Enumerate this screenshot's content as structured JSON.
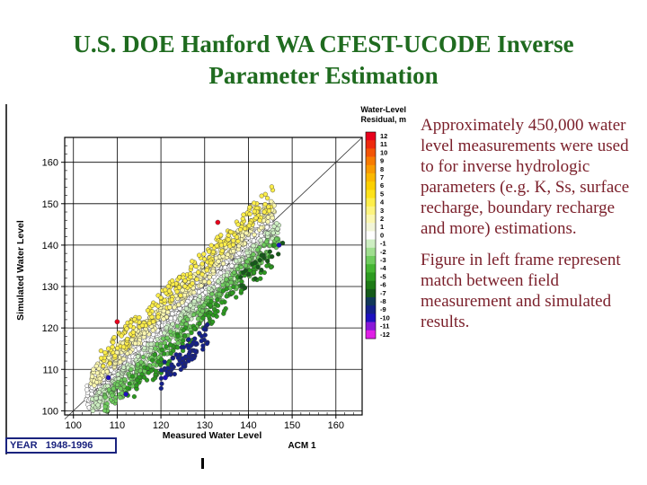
{
  "title_line1": "U.S. DOE Hanford WA CFEST-UCODE Inverse",
  "title_line2": "Parameter Estimation",
  "paragraph1": "Approximately 450,000 water level measurements were used to for inverse hydrologic parameters (e.g. K, Ss, surface recharge, boundary recharge and more) estimations.",
  "paragraph2": "Figure in left frame represent match between field measurement and simulated results.",
  "year_label": "YEAR   1948-1996",
  "model_label": "ACM 1",
  "colors": {
    "title": "#1f6b1f",
    "body_text": "#7a1f2a",
    "year_box": "#1a237e"
  },
  "chart_data": {
    "type": "scatter",
    "xlabel": "Measured Water Level",
    "ylabel": "Simulated Water Level",
    "xlim": [
      98,
      166
    ],
    "ylim": [
      99,
      166
    ],
    "xticks": [
      100,
      110,
      120,
      130,
      140,
      150,
      160
    ],
    "yticks": [
      100,
      110,
      120,
      130,
      140,
      150,
      160
    ],
    "grid": true,
    "reference_line": "1:1",
    "legend": {
      "title_line1": "Water-Level",
      "title_line2": "Residual, m",
      "placement": "right",
      "values": [
        12,
        11,
        10,
        9,
        8,
        7,
        6,
        5,
        4,
        3,
        2,
        1,
        0,
        -1,
        -2,
        -3,
        -4,
        -5,
        -6,
        -7,
        -8,
        -9,
        -10,
        -11,
        -12
      ],
      "colors": [
        "#e8001c",
        "#ee2a0e",
        "#f35405",
        "#f77b00",
        "#f99b00",
        "#fbb800",
        "#fcd000",
        "#fde21a",
        "#fdee4a",
        "#fdf47f",
        "#fbf7b0",
        "#f2f5d8",
        "#ffffff",
        "#cdeec2",
        "#9fde8f",
        "#6fcc5e",
        "#45b533",
        "#2c9a20",
        "#1d7a16",
        "#155a1a",
        "#12385a",
        "#15208a",
        "#1e10c0",
        "#8a18d8",
        "#e01fe6"
      ]
    },
    "point_groups": [
      {
        "residual": 0,
        "x_range": [
          103,
          146
        ],
        "offset_range": [
          -3,
          3
        ],
        "count": 700
      },
      {
        "residual": 2,
        "x_range": [
          104,
          146
        ],
        "offset_range": [
          1,
          6
        ],
        "count": 380
      },
      {
        "residual": 4,
        "x_range": [
          106,
          146
        ],
        "offset_range": [
          3,
          9
        ],
        "count": 240
      },
      {
        "residual": -1,
        "x_range": [
          104,
          147
        ],
        "offset_range": [
          -5,
          -1
        ],
        "count": 300
      },
      {
        "residual": -3,
        "x_range": [
          107,
          147
        ],
        "offset_range": [
          -8,
          -3
        ],
        "count": 300
      },
      {
        "residual": -5,
        "x_range": [
          112,
          146
        ],
        "offset_range": [
          -11,
          -5
        ],
        "count": 140
      },
      {
        "residual": -9,
        "x_range": [
          120,
          131
        ],
        "offset_range": [
          -15,
          -9
        ],
        "count": 90
      },
      {
        "residual": -7,
        "x_range": [
          138,
          148
        ],
        "offset_range": [
          -10,
          -5
        ],
        "count": 20
      }
    ],
    "outliers": [
      {
        "x": 110,
        "y": 121.5,
        "residual": 12
      },
      {
        "x": 133,
        "y": 145.5,
        "residual": 12
      },
      {
        "x": 122,
        "y": 125,
        "residual": 3
      },
      {
        "x": 131,
        "y": 131,
        "residual": 3
      },
      {
        "x": 112,
        "y": 104,
        "residual": -10
      },
      {
        "x": 121,
        "y": 108,
        "residual": -10
      },
      {
        "x": 108,
        "y": 108,
        "residual": -10
      },
      {
        "x": 147,
        "y": 140,
        "residual": -10
      }
    ]
  }
}
